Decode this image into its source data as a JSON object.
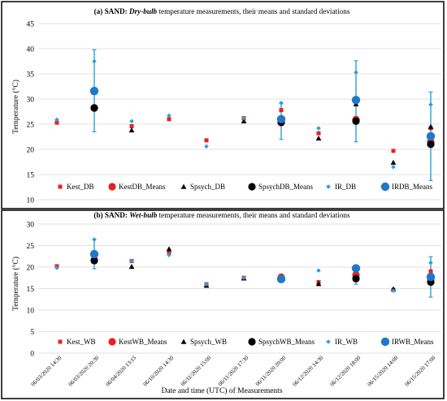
{
  "chart_data": [
    {
      "type": "scatter",
      "title_parts": [
        {
          "text": "(a) SAND: ",
          "weight": "bold",
          "style": "normal"
        },
        {
          "text": "Dry-bulb",
          "weight": "bold",
          "style": "italic"
        },
        {
          "text": " temperature measurements, their means and standard deviations",
          "weight": "normal",
          "style": "normal"
        }
      ],
      "ylabel": "Temperature (°C)",
      "ylim": [
        10,
        45
      ],
      "yticks": [
        10,
        15,
        20,
        25,
        30,
        35,
        40,
        45
      ],
      "grid": "horizontal",
      "legend_position": "bottom",
      "x": [
        "06/03/2020 14:30",
        "06/03/2020 20:30",
        "06/04/2020 13:15",
        "06/10/2020 14:30",
        "06/11/2020 15:00",
        "06/11/2020 17:30",
        "06/11/2020 20:00",
        "06/12/2020 14:30",
        "06/12/2020 18:00",
        "06/15/2020 14:00",
        "06/15/2020 17:00"
      ],
      "series": [
        {
          "name": "Kest_DB",
          "marker": "square",
          "color": "#e8211d",
          "values": [
            25.3,
            28.0,
            24.6,
            26.0,
            21.8,
            26.2,
            27.8,
            23.2,
            26.2,
            19.7,
            24.2
          ]
        },
        {
          "name": "KestDB_Means",
          "marker": "circle-large",
          "color": "#e8211d",
          "values": [
            null,
            28.3,
            null,
            null,
            null,
            null,
            25.3,
            null,
            25.9,
            null,
            21.5
          ]
        },
        {
          "name": "Spsych_DB",
          "marker": "triangle",
          "color": "#000000",
          "values": [
            null,
            31.3,
            23.8,
            null,
            null,
            25.6,
            25.5,
            22.2,
            29.0,
            17.4,
            24.5
          ]
        },
        {
          "name": "SpsychDB_Means",
          "marker": "circle-large",
          "color": "#000000",
          "values": [
            null,
            28.2,
            null,
            null,
            null,
            null,
            25.4,
            null,
            25.6,
            null,
            21.0
          ]
        },
        {
          "name": "IR_DB",
          "marker": "diamond",
          "color": "#2ea0d8",
          "values": [
            25.9,
            37.5,
            25.6,
            26.7,
            20.6,
            26.2,
            29.2,
            24.2,
            35.3,
            16.5,
            28.9
          ]
        },
        {
          "name": "IRDB_Means",
          "marker": "circle-large",
          "color": "#1f78c8",
          "values": [
            null,
            31.6,
            null,
            null,
            null,
            null,
            26.0,
            null,
            29.8,
            null,
            22.6
          ]
        }
      ],
      "error_bars": [
        {
          "x_index": 1,
          "low": 23.5,
          "high": 39.8
        },
        {
          "x_index": 6,
          "low": 22.0,
          "high": 29.3
        },
        {
          "x_index": 8,
          "low": 21.5,
          "high": 37.6
        },
        {
          "x_index": 10,
          "low": 13.8,
          "high": 31.4
        }
      ]
    },
    {
      "type": "scatter",
      "title_parts": [
        {
          "text": "(b) SAND: ",
          "weight": "bold",
          "style": "normal"
        },
        {
          "text": "Wet-bulb",
          "weight": "bold",
          "style": "italic"
        },
        {
          "text": " temperature measurements, their means and standard deviations",
          "weight": "normal",
          "style": "normal"
        }
      ],
      "ylabel": "Temperature (°C)",
      "xlabel": "Date and time (UTC)  of Measurements",
      "ylim": [
        0,
        30
      ],
      "yticks": [
        0,
        5,
        10,
        15,
        20,
        25,
        30
      ],
      "grid": "horizontal",
      "legend_position": "bottom",
      "x": [
        "06/03/2020 14:30",
        "06/03/2020 20:30",
        "06/04/2020 13:15",
        "06/10/2020 14:30",
        "06/11/2020 15:00",
        "06/11/2020 17:30",
        "06/11/2020 20:00",
        "06/12/2020 14:30",
        "06/12/2020 18:00",
        "06/15/2020 14:00",
        "06/15/2020 17:00"
      ],
      "series": [
        {
          "name": "Kest_WB",
          "marker": "square",
          "color": "#e8211d",
          "values": [
            20.2,
            21.8,
            21.4,
            23.2,
            16.0,
            17.5,
            18.0,
            16.5,
            18.7,
            14.7,
            19.0
          ]
        },
        {
          "name": "KestWB_Means",
          "marker": "circle-large",
          "color": "#e8211d",
          "values": [
            null,
            21.6,
            null,
            null,
            null,
            null,
            17.6,
            null,
            18.2,
            null,
            17.1
          ]
        },
        {
          "name": "Spsych_WB",
          "marker": "triangle",
          "color": "#000000",
          "values": [
            null,
            21.3,
            20.1,
            24.2,
            15.7,
            17.4,
            17.1,
            16.1,
            17.9,
            14.9,
            16.8
          ]
        },
        {
          "name": "SpsychWB_Means",
          "marker": "circle-large",
          "color": "#000000",
          "values": [
            null,
            21.5,
            null,
            null,
            null,
            null,
            17.3,
            null,
            17.3,
            null,
            16.5
          ]
        },
        {
          "name": "IR_WB",
          "marker": "diamond",
          "color": "#2ea0d8",
          "values": [
            19.8,
            26.4,
            21.4,
            22.8,
            16.0,
            17.5,
            17.0,
            19.2,
            20.0,
            14.5,
            21.0
          ]
        },
        {
          "name": "IRWB_Means",
          "marker": "circle-large",
          "color": "#1f78c8",
          "values": [
            null,
            23.0,
            null,
            null,
            null,
            null,
            17.2,
            null,
            19.7,
            null,
            17.7
          ]
        }
      ],
      "error_bars": [
        {
          "x_index": 1,
          "low": 19.6,
          "high": 26.4
        },
        {
          "x_index": 6,
          "low": 16.8,
          "high": 18.1
        },
        {
          "x_index": 8,
          "low": 16.0,
          "high": 20.3
        },
        {
          "x_index": 10,
          "low": 13.0,
          "high": 22.4
        }
      ]
    }
  ]
}
